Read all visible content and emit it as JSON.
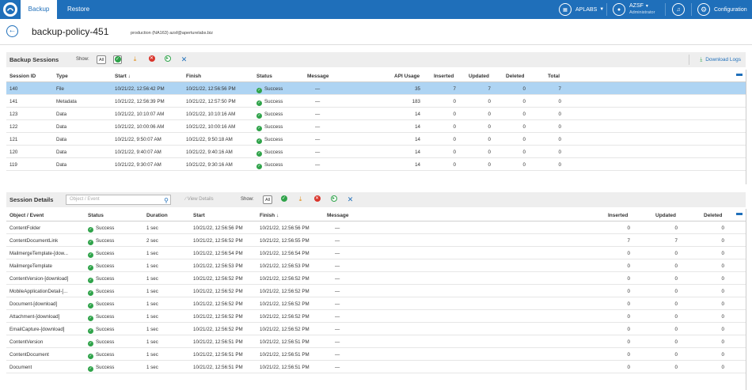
{
  "nav": {
    "tabs": [
      "Backup",
      "Restore"
    ],
    "org": "APLABS",
    "user_name": "AZSF",
    "user_role": "Administrator",
    "config": "Configuration"
  },
  "page": {
    "title": "backup-policy-451",
    "subtitle": "production (NA163) azsf@aperturelabs.biz"
  },
  "sessions": {
    "title": "Backup Sessions",
    "show_label": "Show:",
    "all_label": "All",
    "download_logs": "Download Logs",
    "columns": [
      "Session ID",
      "Type",
      "Start ↓",
      "Finish",
      "Status",
      "Message",
      "API Usage",
      "Inserted",
      "Updated",
      "Deleted",
      "Total"
    ],
    "rows": [
      [
        "140",
        "File",
        "10/21/22, 12:56:42 PM",
        "10/21/22, 12:56:56 PM",
        "Success",
        "—",
        "35",
        "7",
        "7",
        "0",
        "7"
      ],
      [
        "141",
        "Metadata",
        "10/21/22, 12:56:39 PM",
        "10/21/22, 12:57:50 PM",
        "Success",
        "—",
        "183",
        "0",
        "0",
        "0",
        "0"
      ],
      [
        "123",
        "Data",
        "10/21/22, 10:10:07 AM",
        "10/21/22, 10:10:16 AM",
        "Success",
        "—",
        "14",
        "0",
        "0",
        "0",
        "0"
      ],
      [
        "122",
        "Data",
        "10/21/22, 10:00:06 AM",
        "10/21/22, 10:00:16 AM",
        "Success",
        "—",
        "14",
        "0",
        "0",
        "0",
        "0"
      ],
      [
        "121",
        "Data",
        "10/21/22, 9:50:07 AM",
        "10/21/22, 9:50:18 AM",
        "Success",
        "—",
        "14",
        "0",
        "0",
        "0",
        "0"
      ],
      [
        "120",
        "Data",
        "10/21/22, 9:40:07 AM",
        "10/21/22, 9:40:16 AM",
        "Success",
        "—",
        "14",
        "0",
        "0",
        "0",
        "0"
      ],
      [
        "119",
        "Data",
        "10/21/22, 9:30:07 AM",
        "10/21/22, 9:30:16 AM",
        "Success",
        "—",
        "14",
        "0",
        "0",
        "0",
        "0"
      ]
    ]
  },
  "details": {
    "title": "Session Details",
    "search_placeholder": "Object / Event",
    "view_details": "View Details",
    "show_label": "Show:",
    "all_label": "All",
    "columns": [
      "Object / Event",
      "Status",
      "Duration",
      "Start",
      "Finish ↓",
      "Message",
      "Inserted",
      "Updated",
      "Deleted"
    ],
    "rows": [
      [
        "ContentFolder",
        "Success",
        "1 sec",
        "10/21/22, 12:56:56 PM",
        "10/21/22, 12:56:56 PM",
        "—",
        "0",
        "0",
        "0"
      ],
      [
        "ContentDocumentLink",
        "Success",
        "2 sec",
        "10/21/22, 12:56:52 PM",
        "10/21/22, 12:56:55 PM",
        "—",
        "7",
        "7",
        "0"
      ],
      [
        "MailmergeTemplate-[dow...",
        "Success",
        "1 sec",
        "10/21/22, 12:56:54 PM",
        "10/21/22, 12:56:54 PM",
        "—",
        "0",
        "0",
        "0"
      ],
      [
        "MailmergeTemplate",
        "Success",
        "1 sec",
        "10/21/22, 12:56:53 PM",
        "10/21/22, 12:56:53 PM",
        "—",
        "0",
        "0",
        "0"
      ],
      [
        "ContentVersion-[download]",
        "Success",
        "1 sec",
        "10/21/22, 12:56:52 PM",
        "10/21/22, 12:56:52 PM",
        "—",
        "0",
        "0",
        "0"
      ],
      [
        "MobileApplicationDetail-[...",
        "Success",
        "1 sec",
        "10/21/22, 12:56:52 PM",
        "10/21/22, 12:56:52 PM",
        "—",
        "0",
        "0",
        "0"
      ],
      [
        "Document-[download]",
        "Success",
        "1 sec",
        "10/21/22, 12:56:52 PM",
        "10/21/22, 12:56:52 PM",
        "—",
        "0",
        "0",
        "0"
      ],
      [
        "Attachment-[download]",
        "Success",
        "1 sec",
        "10/21/22, 12:56:52 PM",
        "10/21/22, 12:56:52 PM",
        "—",
        "0",
        "0",
        "0"
      ],
      [
        "EmailCapture-[download]",
        "Success",
        "1 sec",
        "10/21/22, 12:56:52 PM",
        "10/21/22, 12:56:52 PM",
        "—",
        "0",
        "0",
        "0"
      ],
      [
        "ContentVersion",
        "Success",
        "1 sec",
        "10/21/22, 12:56:51 PM",
        "10/21/22, 12:56:51 PM",
        "—",
        "0",
        "0",
        "0"
      ],
      [
        "ContentDocument",
        "Success",
        "1 sec",
        "10/21/22, 12:56:51 PM",
        "10/21/22, 12:56:51 PM",
        "—",
        "0",
        "0",
        "0"
      ],
      [
        "Document",
        "Success",
        "1 sec",
        "10/21/22, 12:56:51 PM",
        "10/21/22, 12:56:51 PM",
        "—",
        "0",
        "0",
        "0"
      ]
    ]
  },
  "colors": {
    "brand": "#1f6fba",
    "success": "#2fa34a",
    "selected_row": "#aed4f3"
  }
}
